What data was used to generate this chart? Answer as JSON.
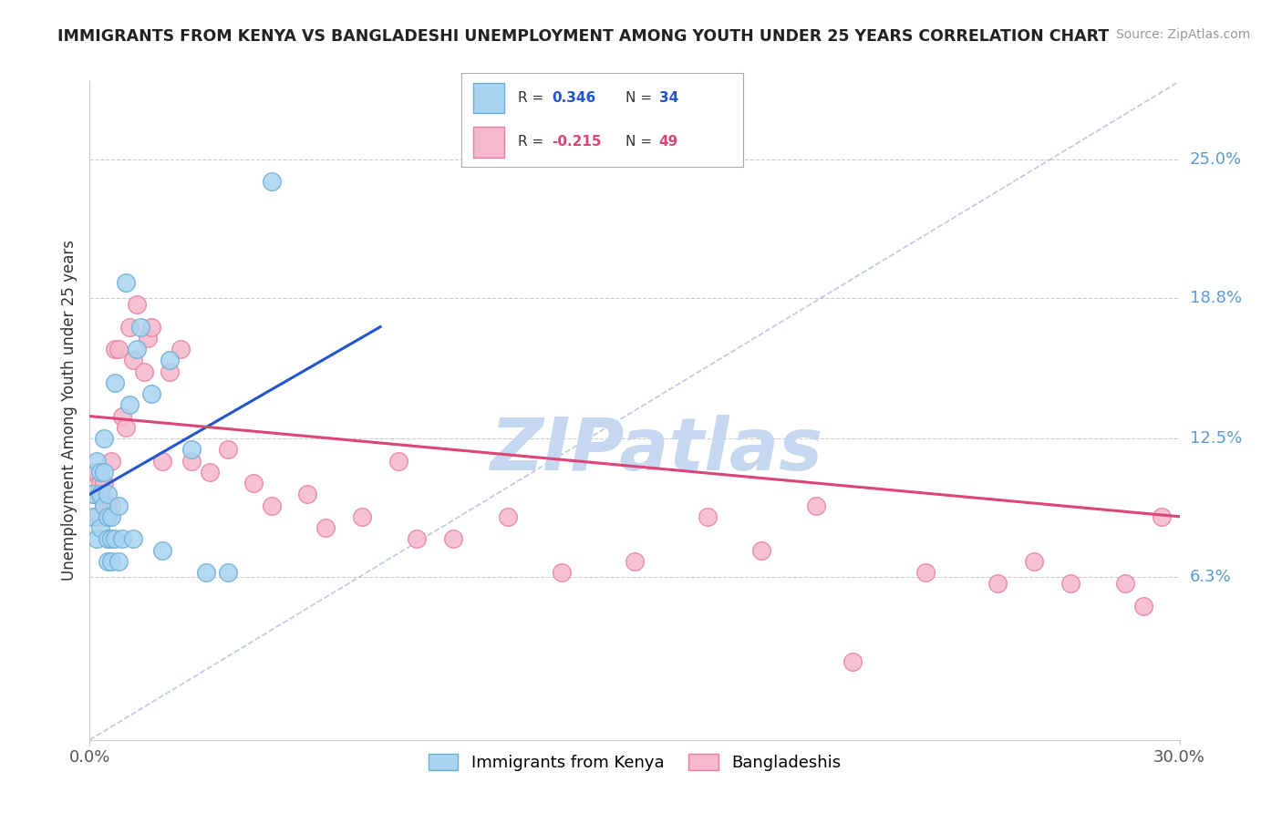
{
  "title": "IMMIGRANTS FROM KENYA VS BANGLADESHI UNEMPLOYMENT AMONG YOUTH UNDER 25 YEARS CORRELATION CHART",
  "source": "Source: ZipAtlas.com",
  "ylabel": "Unemployment Among Youth under 25 years",
  "xlim": [
    0.0,
    0.3
  ],
  "ylim": [
    -0.01,
    0.285
  ],
  "ytick_vals": [
    0.063,
    0.125,
    0.188,
    0.25
  ],
  "ytick_labels": [
    "6.3%",
    "12.5%",
    "18.8%",
    "25.0%"
  ],
  "series1_label": "Immigrants from Kenya",
  "series1_R": "0.346",
  "series1_N": "34",
  "series1_color": "#a8d4f0",
  "series1_edgecolor": "#6aaed6",
  "series2_label": "Bangladeshis",
  "series2_R": "-0.215",
  "series2_N": "49",
  "series2_color": "#f5b8cc",
  "series2_edgecolor": "#e87fa0",
  "trend1_color": "#2255cc",
  "trend2_color": "#dd4477",
  "diag_color": "#aabbdd",
  "watermark_text": "ZIPatlas",
  "watermark_color": "#c5d8f0",
  "background_color": "#ffffff",
  "series1_x": [
    0.001,
    0.001,
    0.002,
    0.002,
    0.003,
    0.003,
    0.003,
    0.004,
    0.004,
    0.004,
    0.005,
    0.005,
    0.005,
    0.005,
    0.006,
    0.006,
    0.006,
    0.007,
    0.007,
    0.008,
    0.008,
    0.009,
    0.01,
    0.011,
    0.012,
    0.013,
    0.014,
    0.017,
    0.02,
    0.022,
    0.028,
    0.032,
    0.038,
    0.05
  ],
  "series1_y": [
    0.1,
    0.09,
    0.115,
    0.08,
    0.11,
    0.1,
    0.085,
    0.125,
    0.11,
    0.095,
    0.1,
    0.09,
    0.08,
    0.07,
    0.09,
    0.08,
    0.07,
    0.15,
    0.08,
    0.095,
    0.07,
    0.08,
    0.195,
    0.14,
    0.08,
    0.165,
    0.175,
    0.145,
    0.075,
    0.16,
    0.12,
    0.065,
    0.065,
    0.24
  ],
  "series2_x": [
    0.001,
    0.001,
    0.002,
    0.002,
    0.003,
    0.004,
    0.004,
    0.005,
    0.005,
    0.006,
    0.006,
    0.007,
    0.008,
    0.009,
    0.01,
    0.011,
    0.012,
    0.013,
    0.015,
    0.016,
    0.017,
    0.02,
    0.022,
    0.025,
    0.028,
    0.033,
    0.038,
    0.045,
    0.05,
    0.06,
    0.065,
    0.075,
    0.085,
    0.09,
    0.1,
    0.115,
    0.13,
    0.15,
    0.17,
    0.185,
    0.2,
    0.21,
    0.23,
    0.25,
    0.26,
    0.27,
    0.285,
    0.29,
    0.295
  ],
  "series2_y": [
    0.11,
    0.1,
    0.11,
    0.09,
    0.105,
    0.105,
    0.095,
    0.095,
    0.08,
    0.115,
    0.095,
    0.165,
    0.165,
    0.135,
    0.13,
    0.175,
    0.16,
    0.185,
    0.155,
    0.17,
    0.175,
    0.115,
    0.155,
    0.165,
    0.115,
    0.11,
    0.12,
    0.105,
    0.095,
    0.1,
    0.085,
    0.09,
    0.115,
    0.08,
    0.08,
    0.09,
    0.065,
    0.07,
    0.09,
    0.075,
    0.095,
    0.025,
    0.065,
    0.06,
    0.07,
    0.06,
    0.06,
    0.05,
    0.09
  ],
  "trend1_x": [
    0.0,
    0.08
  ],
  "trend1_y": [
    0.1,
    0.175
  ],
  "trend2_x": [
    0.0,
    0.3
  ],
  "trend2_y": [
    0.135,
    0.09
  ]
}
